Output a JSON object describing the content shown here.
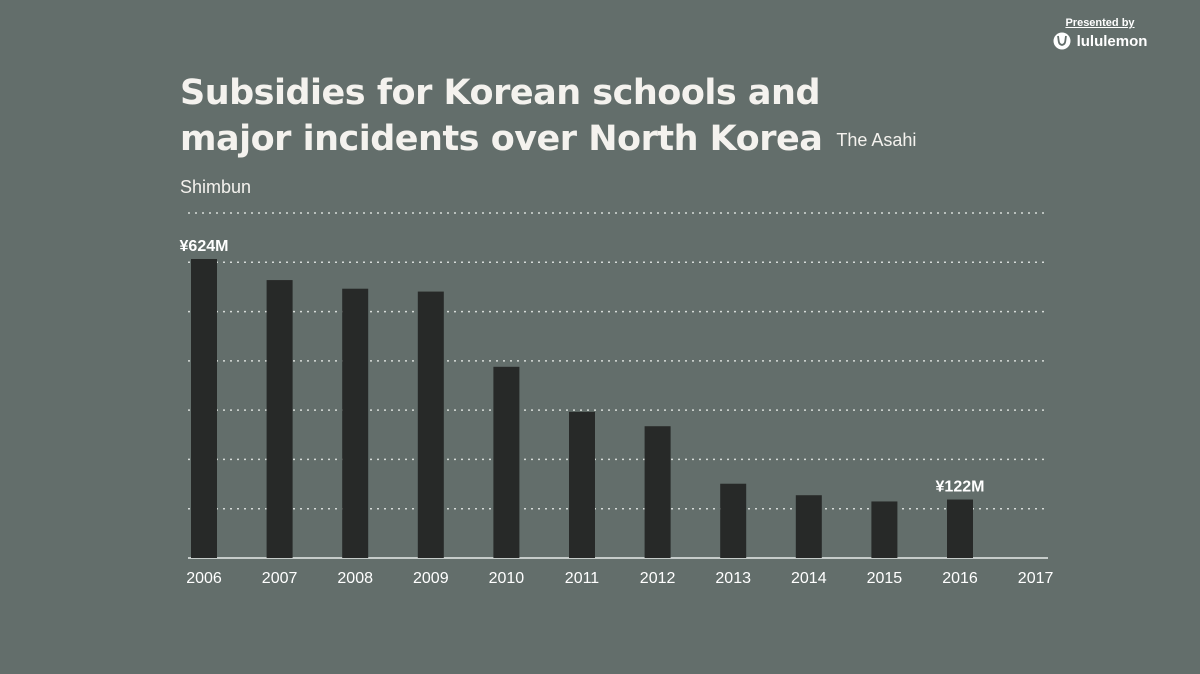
{
  "sponsor": {
    "label": "Presented by",
    "brand": "lululemon"
  },
  "header": {
    "title": "Subsidies for Korean schools and major incidents over North Korea",
    "source": "The Asahi Shimbun"
  },
  "colors": {
    "background": "#636e6b",
    "bar": "#272928",
    "grid": "#d6dbd8",
    "text": "#ffffff"
  },
  "chart_data": {
    "type": "bar",
    "title": "Subsidies for Korean schools and major incidents over North Korea",
    "xlabel": "",
    "ylabel": "",
    "unit": "¥ million",
    "ylim": [
      0,
      720
    ],
    "grid": true,
    "categories": [
      "2006",
      "2007",
      "2008",
      "2009",
      "2010",
      "2011",
      "2012",
      "2013",
      "2014",
      "2015",
      "2016",
      "2017"
    ],
    "values": [
      624,
      580,
      562,
      556,
      399,
      305,
      275,
      155,
      131,
      118,
      122,
      null
    ],
    "annotations": [
      {
        "category": "2006",
        "label": "¥624M"
      },
      {
        "category": "2016",
        "label": "¥122M"
      }
    ]
  }
}
